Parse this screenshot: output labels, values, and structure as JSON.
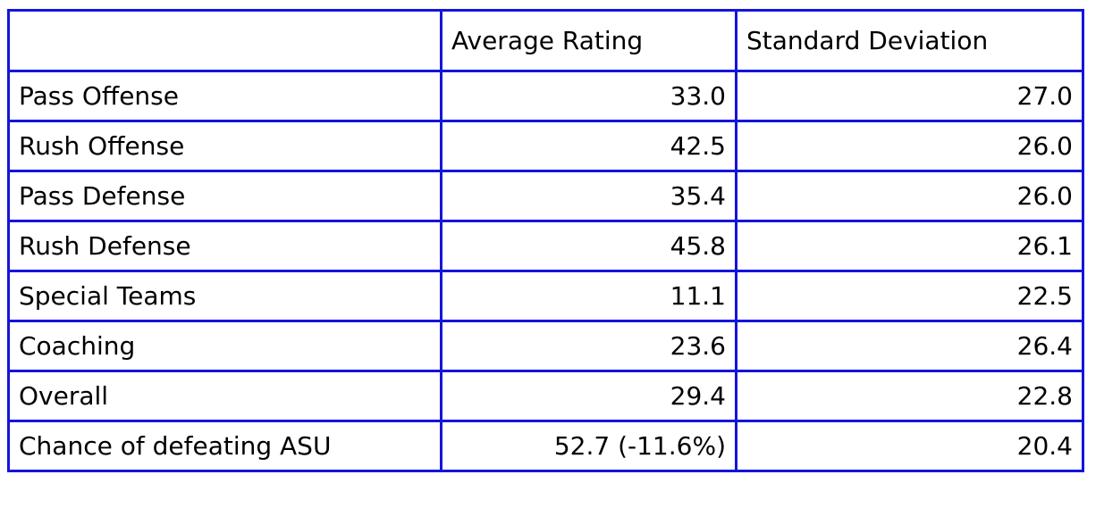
{
  "table": {
    "columns": {
      "label": "",
      "average_rating": "Average Rating",
      "standard_deviation": "Standard Deviation"
    },
    "rows": [
      {
        "label": "Pass Offense",
        "average_rating": "33.0",
        "standard_deviation": "27.0"
      },
      {
        "label": "Rush Offense",
        "average_rating": "42.5",
        "standard_deviation": "26.0"
      },
      {
        "label": "Pass Defense",
        "average_rating": "35.4",
        "standard_deviation": "26.0"
      },
      {
        "label": "Rush Defense",
        "average_rating": "45.8",
        "standard_deviation": "26.1"
      },
      {
        "label": "Special Teams",
        "average_rating": "11.1",
        "standard_deviation": "22.5"
      },
      {
        "label": "Coaching",
        "average_rating": "23.6",
        "standard_deviation": "26.4"
      },
      {
        "label": "Overall",
        "average_rating": "29.4",
        "standard_deviation": "22.8"
      },
      {
        "label": "Chance of defeating ASU",
        "average_rating": "52.7 (-11.6%)",
        "standard_deviation": "20.4"
      }
    ],
    "colors": {
      "border": "#1414dc",
      "text": "#000000",
      "background": "#ffffff"
    }
  },
  "chart_data": {
    "type": "table",
    "title": "",
    "columns": [
      "",
      "Average Rating",
      "Standard Deviation"
    ],
    "categories": [
      "Pass Offense",
      "Rush Offense",
      "Pass Defense",
      "Rush Defense",
      "Special Teams",
      "Coaching",
      "Overall",
      "Chance of defeating ASU"
    ],
    "series": [
      {
        "name": "Average Rating",
        "values": [
          33.0,
          42.5,
          35.4,
          45.8,
          11.1,
          23.6,
          29.4,
          52.7
        ]
      },
      {
        "name": "Standard Deviation",
        "values": [
          27.0,
          26.0,
          26.0,
          26.1,
          22.5,
          26.4,
          22.8,
          20.4
        ]
      }
    ],
    "annotations": [
      "Chance of defeating ASU average rating shown as \"52.7 (-11.6%)\""
    ]
  }
}
